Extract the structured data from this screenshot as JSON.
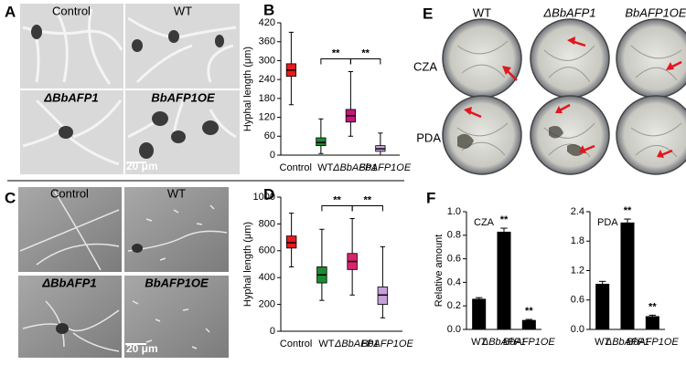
{
  "panels": [
    "A",
    "B",
    "C",
    "D",
    "E",
    "F"
  ],
  "micrographs": [
    {
      "labels": [
        "Control",
        "WT",
        "ΔBbAFP1",
        "BbAFP1OE"
      ],
      "scale": "20 μm"
    },
    {
      "labels": [
        "Control",
        "WT",
        "ΔBbAFP1",
        "BbAFP1OE"
      ],
      "scale": "20 μm"
    }
  ],
  "plates": {
    "columns": [
      "WT",
      "ΔBbAFP1",
      "BbAFP1OE"
    ],
    "rows": [
      "CZA",
      "PDA"
    ]
  },
  "chart_data": [
    {
      "type": "box",
      "ylabel": "Hyphal length (μm)",
      "categories": [
        "Control",
        "WT",
        "ΔBbAFP1",
        "BbAFP1OE"
      ],
      "colors": [
        "#e8191f",
        "#1c8a2e",
        "#c2187a",
        "#c9a6d9"
      ],
      "boxes": [
        {
          "min": 160,
          "q1": 250,
          "median": 270,
          "q3": 290,
          "max": 390
        },
        {
          "min": 5,
          "q1": 30,
          "median": 40,
          "q3": 55,
          "max": 115
        },
        {
          "min": 60,
          "q1": 105,
          "median": 125,
          "q3": 145,
          "max": 265
        },
        {
          "min": 0,
          "q1": 12,
          "median": 20,
          "q3": 30,
          "max": 70
        }
      ],
      "ylim": [
        0,
        420
      ],
      "yticks": [
        0,
        60,
        120,
        180,
        240,
        300,
        360,
        420
      ],
      "annotations": [
        "**",
        "**"
      ]
    },
    {
      "type": "box",
      "ylabel": "Hyphal length (μm)",
      "categories": [
        "Control",
        "WT",
        "ΔBbAFP1",
        "BbAFP1OE"
      ],
      "colors": [
        "#e8191f",
        "#1c8a2e",
        "#d6246f",
        "#c7a0d8"
      ],
      "boxes": [
        {
          "min": 480,
          "q1": 620,
          "median": 660,
          "q3": 710,
          "max": 880
        },
        {
          "min": 230,
          "q1": 360,
          "median": 420,
          "q3": 480,
          "max": 760
        },
        {
          "min": 270,
          "q1": 460,
          "median": 520,
          "q3": 580,
          "max": 840
        },
        {
          "min": 100,
          "q1": 200,
          "median": 270,
          "q3": 330,
          "max": 630
        }
      ],
      "ylim": [
        0,
        1000
      ],
      "yticks": [
        0,
        200,
        400,
        600,
        800,
        1000
      ],
      "annotations": [
        "**",
        "**"
      ]
    },
    {
      "type": "bar",
      "title": "CZA",
      "ylabel": "Relative amount",
      "categories": [
        "WT",
        "ΔBbAFP1",
        "BbAFP1OE"
      ],
      "values": [
        0.26,
        0.83,
        0.08
      ],
      "errors": [
        0.01,
        0.03,
        0.005
      ],
      "color": "#000000",
      "significance": [
        null,
        "**",
        "**"
      ],
      "ylim": [
        0,
        1
      ],
      "yticks": [
        {
          "value": 0,
          "label": "0.0"
        },
        0.2,
        0.4,
        0.6,
        0.8,
        {
          "value": 1,
          "label": "1.0"
        }
      ]
    },
    {
      "type": "bar",
      "title": "PDA",
      "categories": [
        "WT",
        "ΔBbAFP1",
        "BbAFP1OE"
      ],
      "values": [
        0.93,
        2.18,
        0.27
      ],
      "errors": [
        0.05,
        0.07,
        0.02
      ],
      "color": "#000000",
      "significance": [
        null,
        "**",
        "**"
      ],
      "ylim": [
        0,
        2.4
      ],
      "yticks": [
        {
          "value": 0,
          "label": "0.0"
        },
        0.6,
        1.2,
        1.8,
        2.4
      ]
    }
  ]
}
